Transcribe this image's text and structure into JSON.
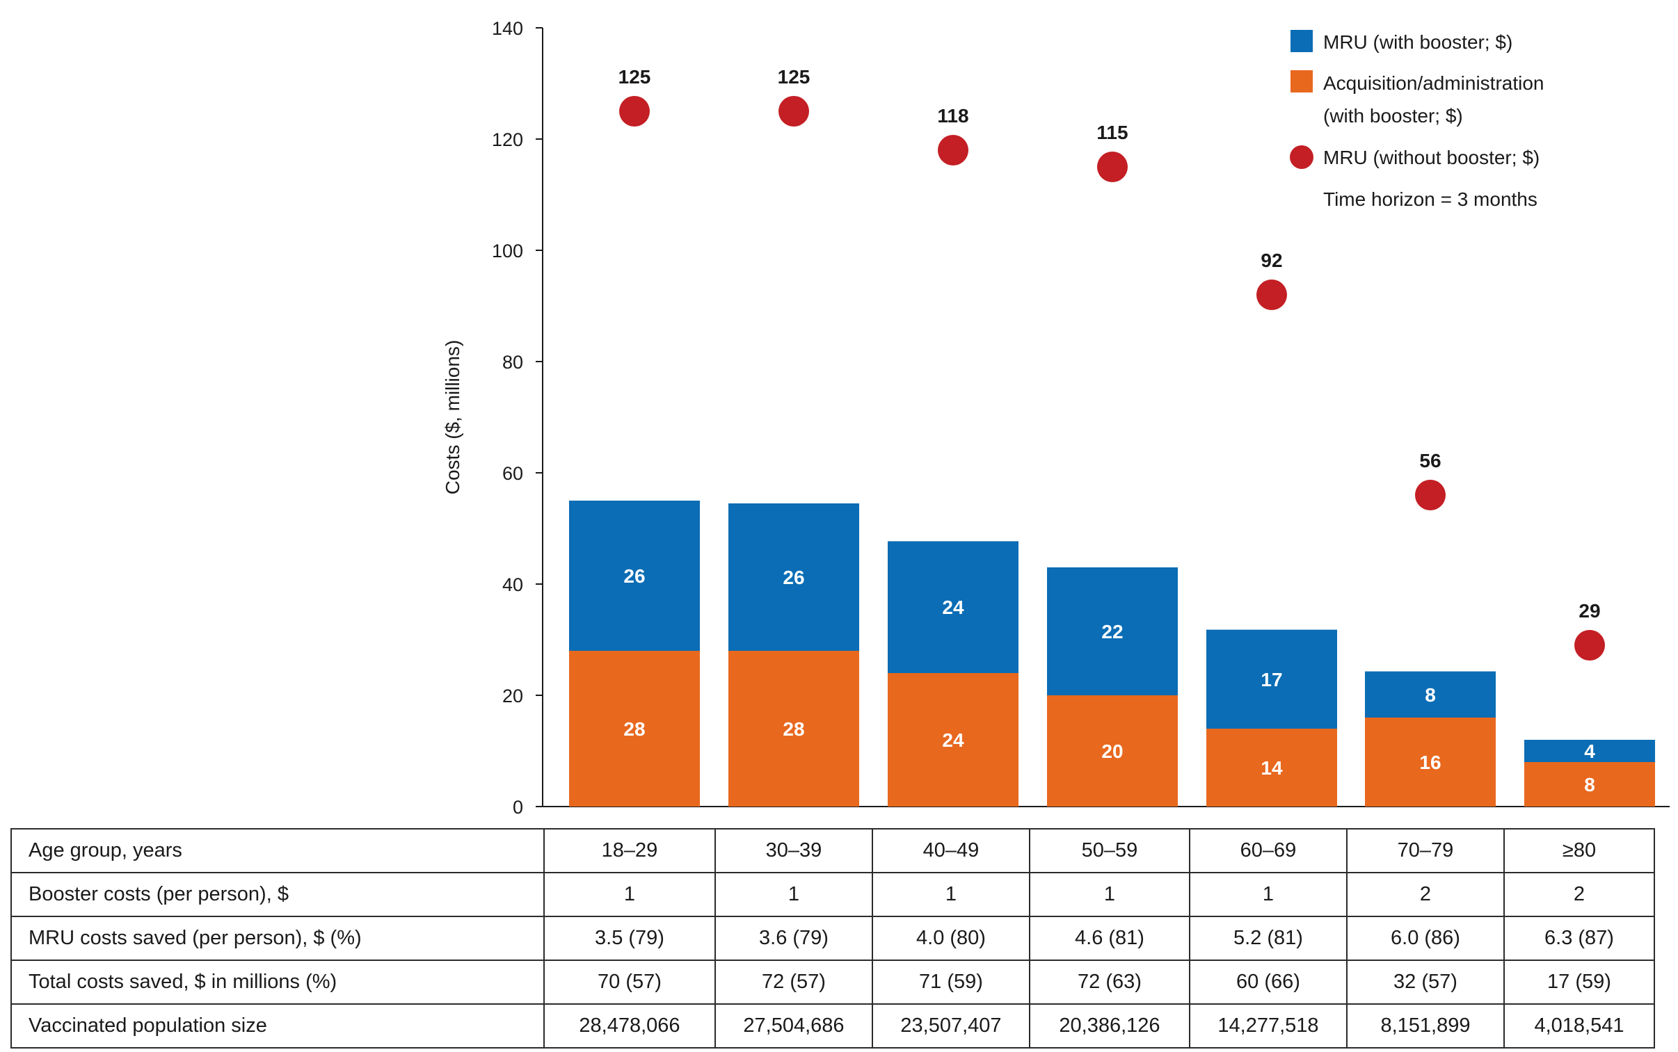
{
  "chart_data": {
    "type": "bar",
    "stacked": true,
    "ylabel": "Costs ($, millions)",
    "ylim": [
      0,
      140
    ],
    "yticks": [
      0,
      20,
      40,
      60,
      80,
      100,
      120,
      140
    ],
    "categories": [
      "18–29",
      "30–39",
      "40–49",
      "50–59",
      "60–69",
      "70–79",
      "≥80"
    ],
    "series": [
      {
        "name": "Acquisition/administration (with booster; $)",
        "legend_lines": [
          "Acquisition/administration",
          "(with booster; $)"
        ],
        "color": "#e8681e",
        "values": [
          28,
          28,
          24,
          20,
          14,
          16,
          8
        ]
      },
      {
        "name": "MRU (with booster; $)",
        "legend_lines": [
          "MRU (with booster; $)"
        ],
        "color": "#0a6db5",
        "values": [
          26,
          26,
          24,
          22,
          17,
          8,
          4
        ]
      }
    ],
    "bar_totals": [
      55,
      54.5,
      47.7,
      43,
      31.8,
      24.3,
      12
    ],
    "points": {
      "name": "MRU (without booster; $)",
      "legend_lines": [
        "MRU (without booster; $)"
      ],
      "color": "#c31f24",
      "values": [
        125,
        125,
        118,
        115,
        92,
        56,
        29
      ]
    },
    "legend_note": "Time horizon = 3 months",
    "legend_position": "top-right"
  },
  "table": {
    "rows": [
      {
        "label": "Age group, years",
        "cells": [
          "18–29",
          "30–39",
          "40–49",
          "50–59",
          "60–69",
          "70–79",
          "≥80"
        ]
      },
      {
        "label": "Booster costs (per person), $",
        "cells": [
          "1",
          "1",
          "1",
          "1",
          "1",
          "2",
          "2"
        ]
      },
      {
        "label": "MRU costs saved (per person), $ (%)",
        "cells": [
          "3.5 (79)",
          "3.6 (79)",
          "4.0 (80)",
          "4.6 (81)",
          "5.2 (81)",
          "6.0 (86)",
          "6.3 (87)"
        ]
      },
      {
        "label": "Total costs saved, $ in millions (%)",
        "cells": [
          "70 (57)",
          "72 (57)",
          "71 (59)",
          "72 (63)",
          "60 (66)",
          "32 (57)",
          "17 (59)"
        ]
      },
      {
        "label": "Vaccinated population size",
        "cells": [
          "28,478,066",
          "27,504,686",
          "23,507,407",
          "20,386,126",
          "14,277,518",
          "8,151,899",
          "4,018,541"
        ]
      }
    ]
  }
}
